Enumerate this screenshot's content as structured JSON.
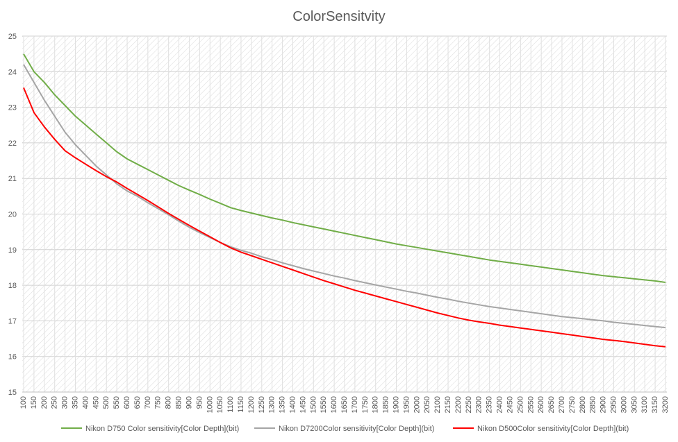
{
  "chart_data": {
    "type": "line",
    "title": "ColorSensitvity",
    "xlabel": "",
    "ylabel": "",
    "ylim": [
      15,
      25
    ],
    "yticks": [
      15,
      16,
      17,
      18,
      19,
      20,
      21,
      22,
      23,
      24,
      25
    ],
    "x": [
      100,
      150,
      200,
      250,
      300,
      350,
      400,
      450,
      500,
      550,
      600,
      650,
      700,
      750,
      800,
      850,
      900,
      950,
      1000,
      1050,
      1100,
      1150,
      1200,
      1250,
      1300,
      1350,
      1400,
      1450,
      1500,
      1550,
      1600,
      1650,
      1700,
      1750,
      1800,
      1850,
      1900,
      1950,
      2000,
      2050,
      2100,
      2150,
      2200,
      2250,
      2300,
      2350,
      2400,
      2450,
      2500,
      2550,
      2600,
      2650,
      2700,
      2750,
      2800,
      2850,
      2900,
      2950,
      3000,
      3050,
      3100,
      3150,
      3200
    ],
    "grid": true,
    "legend_position": "bottom",
    "series": [
      {
        "name": "Nikon D750 Color sensitivity[Color Depth](bit)",
        "color": "#70ad47",
        "values": [
          24.5,
          24.0,
          23.7,
          23.35,
          23.05,
          22.75,
          22.5,
          22.25,
          22.0,
          21.75,
          21.55,
          21.4,
          21.25,
          21.1,
          20.95,
          20.8,
          20.67,
          20.55,
          20.42,
          20.3,
          20.18,
          20.1,
          20.03,
          19.96,
          19.89,
          19.83,
          19.76,
          19.7,
          19.64,
          19.58,
          19.52,
          19.46,
          19.4,
          19.34,
          19.28,
          19.22,
          19.16,
          19.11,
          19.06,
          19.01,
          18.96,
          18.91,
          18.86,
          18.81,
          18.76,
          18.71,
          18.67,
          18.63,
          18.59,
          18.55,
          18.51,
          18.47,
          18.43,
          18.39,
          18.35,
          18.31,
          18.27,
          18.24,
          18.21,
          18.18,
          18.15,
          18.12,
          18.08
        ]
      },
      {
        "name": "Nikon D7200Color sensitivity[Color Depth](bit)",
        "color": "#a5a5a5",
        "values": [
          24.2,
          23.7,
          23.2,
          22.75,
          22.3,
          21.95,
          21.65,
          21.35,
          21.1,
          20.85,
          20.65,
          20.5,
          20.32,
          20.15,
          19.98,
          19.8,
          19.63,
          19.48,
          19.34,
          19.2,
          19.08,
          18.98,
          18.9,
          18.8,
          18.72,
          18.63,
          18.55,
          18.47,
          18.4,
          18.33,
          18.26,
          18.2,
          18.13,
          18.07,
          18.01,
          17.95,
          17.89,
          17.83,
          17.78,
          17.72,
          17.66,
          17.61,
          17.55,
          17.5,
          17.45,
          17.4,
          17.36,
          17.32,
          17.28,
          17.24,
          17.2,
          17.16,
          17.12,
          17.09,
          17.06,
          17.03,
          17.0,
          16.96,
          16.93,
          16.9,
          16.87,
          16.84,
          16.81
        ]
      },
      {
        "name": "Nikon D500Color sensitivity[Color Depth](bit)",
        "color": "#ff0000",
        "values": [
          23.55,
          22.85,
          22.45,
          22.1,
          21.78,
          21.58,
          21.4,
          21.22,
          21.05,
          20.9,
          20.72,
          20.55,
          20.38,
          20.2,
          20.02,
          19.85,
          19.68,
          19.52,
          19.36,
          19.2,
          19.05,
          18.93,
          18.83,
          18.73,
          18.63,
          18.53,
          18.43,
          18.33,
          18.23,
          18.13,
          18.04,
          17.95,
          17.86,
          17.78,
          17.7,
          17.62,
          17.54,
          17.46,
          17.38,
          17.3,
          17.22,
          17.15,
          17.08,
          17.02,
          16.97,
          16.93,
          16.88,
          16.84,
          16.8,
          16.76,
          16.72,
          16.68,
          16.64,
          16.6,
          16.56,
          16.52,
          16.48,
          16.45,
          16.42,
          16.38,
          16.34,
          16.3,
          16.27
        ]
      }
    ]
  }
}
